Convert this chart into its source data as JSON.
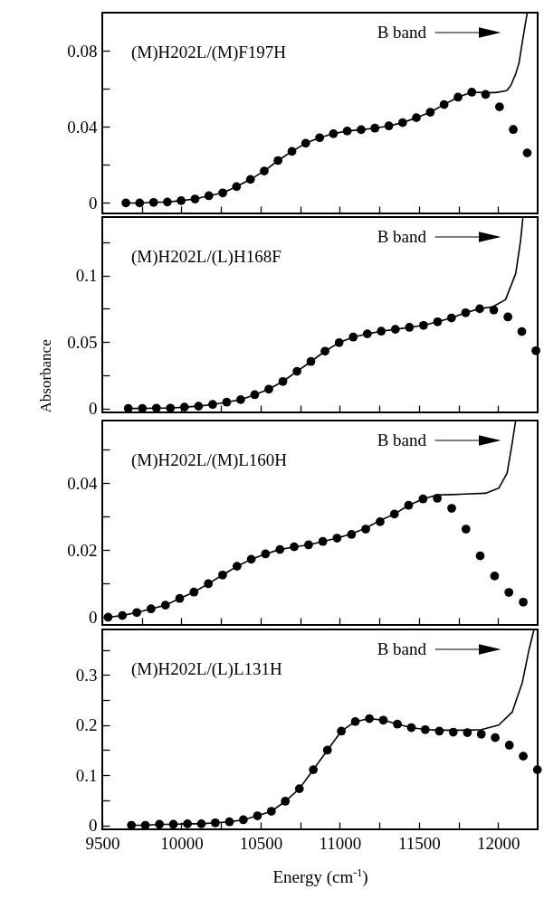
{
  "chart_data": [
    {
      "type": "scatter",
      "annotations": [
        "(M)H202L/(M)F197H",
        "B band"
      ],
      "xlim": [
        9500,
        12250
      ],
      "xticks": [
        9500,
        {
          "value": 9750,
          "label": null
        },
        10000,
        {
          "value": 10250,
          "label": null
        },
        10500,
        {
          "value": 10750,
          "label": null
        },
        11000,
        {
          "value": 11250,
          "label": null
        },
        11500,
        {
          "value": 11750,
          "label": null
        },
        12000
      ],
      "ylim": [
        -0.0055,
        0.1
      ],
      "yticks": [
        0,
        {
          "value": 0.02,
          "label": null
        },
        0.04,
        {
          "value": 0.06,
          "label": null
        },
        0.08
      ],
      "tick_labels": "y",
      "series": [
        {
          "type": "scatter",
          "marker": "circle",
          "color": "#000000",
          "x": [
            9649,
            9736,
            9824,
            9911,
            9998,
            10086,
            10173,
            10261,
            10348,
            10436,
            10523,
            10610,
            10698,
            10785,
            10873,
            10960,
            11047,
            11135,
            11222,
            11310,
            11397,
            11484,
            11572,
            11659,
            11747,
            11834,
            11921,
            12009,
            12096,
            12184
          ],
          "values": [
            0,
            0,
            0.0003,
            0.0005,
            0.0012,
            0.0021,
            0.0038,
            0.0053,
            0.0086,
            0.0124,
            0.0168,
            0.0223,
            0.0271,
            0.0314,
            0.0343,
            0.0364,
            0.0378,
            0.0385,
            0.0393,
            0.0405,
            0.0422,
            0.0448,
            0.0477,
            0.0517,
            0.0556,
            0.0582,
            0.057,
            0.0505,
            0.0386,
            0.0263
          ]
        },
        {
          "type": "line",
          "color": "#000000",
          "x": [
            9649,
            9736,
            9824,
            9911,
            9998,
            10086,
            10173,
            10261,
            10348,
            10436,
            10523,
            10610,
            10698,
            10785,
            10873,
            10960,
            11047,
            11135,
            11222,
            11310,
            11397,
            11484,
            11572,
            11659,
            11747,
            11834,
            11921,
            11983,
            12054,
            12079,
            12110,
            12132,
            12150,
            12170,
            12184
          ],
          "values": [
            0,
            0,
            0.0003,
            0.0005,
            0.0012,
            0.0021,
            0.0038,
            0.0053,
            0.0086,
            0.0124,
            0.0168,
            0.0223,
            0.0271,
            0.0314,
            0.0343,
            0.0364,
            0.0378,
            0.0385,
            0.0393,
            0.0405,
            0.0422,
            0.0448,
            0.0477,
            0.0517,
            0.0556,
            0.0582,
            0.058,
            0.058,
            0.059,
            0.0615,
            0.0675,
            0.0735,
            0.083,
            0.093,
            0.0998
          ]
        }
      ]
    },
    {
      "type": "scatter",
      "ylabel": "Absorbance",
      "annotations": [
        "(M)H202L/(L)H168F",
        "B band"
      ],
      "xlim": [
        9500,
        12250
      ],
      "xticks": [
        9500,
        {
          "value": 9750,
          "label": null
        },
        10000,
        {
          "value": 10250,
          "label": null
        },
        10500,
        {
          "value": 10750,
          "label": null
        },
        11000,
        {
          "value": 11250,
          "label": null
        },
        11500,
        {
          "value": 11750,
          "label": null
        },
        12000
      ],
      "ylim": [
        -0.003,
        0.144
      ],
      "yticks": [
        0,
        {
          "value": 0.025,
          "label": null
        },
        0.05,
        {
          "value": 0.075,
          "label": null
        },
        0.1,
        {
          "value": 0.125,
          "label": null
        }
      ],
      "tick_labels": "y",
      "series": [
        {
          "type": "scatter",
          "marker": "circle",
          "color": "#000000",
          "x": [
            9664,
            9753,
            9842,
            9930,
            10019,
            10108,
            10197,
            10286,
            10374,
            10463,
            10552,
            10641,
            10730,
            10818,
            10907,
            10996,
            11085,
            11174,
            11262,
            11351,
            11440,
            11529,
            11618,
            11706,
            11795,
            11884,
            11973,
            12062,
            12150,
            12239
          ],
          "values": [
            0,
            0,
            0.0002,
            0.0002,
            0.001,
            0.0017,
            0.003,
            0.0047,
            0.0066,
            0.0103,
            0.0145,
            0.0203,
            0.0279,
            0.0353,
            0.0431,
            0.0495,
            0.0537,
            0.0561,
            0.0581,
            0.0595,
            0.061,
            0.0625,
            0.0652,
            0.0681,
            0.072,
            0.075,
            0.074,
            0.0688,
            0.0578,
            0.0434
          ]
        },
        {
          "type": "line",
          "color": "#000000",
          "x": [
            9664,
            9753,
            9842,
            9930,
            10019,
            10108,
            10197,
            10286,
            10374,
            10463,
            10552,
            10641,
            10730,
            10818,
            10907,
            10996,
            11085,
            11174,
            11262,
            11351,
            11440,
            11529,
            11618,
            11706,
            11795,
            11884,
            11966,
            12047,
            12111,
            12142,
            12157
          ],
          "values": [
            0,
            0,
            0.0002,
            0.0002,
            0.001,
            0.0017,
            0.003,
            0.0047,
            0.0066,
            0.0103,
            0.0145,
            0.0203,
            0.0279,
            0.0353,
            0.0431,
            0.0495,
            0.0537,
            0.0561,
            0.0581,
            0.0595,
            0.061,
            0.0625,
            0.0652,
            0.0681,
            0.072,
            0.075,
            0.0765,
            0.0818,
            0.1014,
            0.126,
            0.144
          ]
        }
      ]
    },
    {
      "type": "scatter",
      "annotations": [
        "(M)H202L/(M)L160H",
        "B band"
      ],
      "xlim": [
        9500,
        12250
      ],
      "xticks": [
        9500,
        {
          "value": 9750,
          "label": null
        },
        10000,
        {
          "value": 10250,
          "label": null
        },
        10500,
        {
          "value": 10750,
          "label": null
        },
        11000,
        {
          "value": 11250,
          "label": null
        },
        11500,
        {
          "value": 11750,
          "label": null
        },
        12000
      ],
      "ylim": [
        -0.0023,
        0.0587
      ],
      "yticks": [
        0,
        {
          "value": 0.01,
          "label": null
        },
        0.02,
        {
          "value": 0.03,
          "label": null
        },
        0.04,
        {
          "value": 0.05,
          "label": null
        }
      ],
      "tick_labels": "y",
      "series": [
        {
          "type": "scatter",
          "marker": "circle",
          "color": "#000000",
          "x": [
            9537,
            9627,
            9718,
            9808,
            9899,
            9989,
            10079,
            10170,
            10260,
            10351,
            10441,
            10531,
            10622,
            10712,
            10803,
            10893,
            10983,
            11074,
            11164,
            11255,
            11345,
            11435,
            11526,
            11616,
            11707,
            11797,
            11887,
            11978,
            12068,
            12159
          ],
          "values": [
            0,
            0.0005,
            0.0014,
            0.0025,
            0.0036,
            0.0056,
            0.0075,
            0.01,
            0.0126,
            0.0152,
            0.0173,
            0.0189,
            0.0202,
            0.021,
            0.0216,
            0.0226,
            0.0236,
            0.0247,
            0.0263,
            0.0285,
            0.0308,
            0.0334,
            0.0353,
            0.0355,
            0.0325,
            0.0263,
            0.0183,
            0.0123,
            0.0074,
            0.0045
          ]
        },
        {
          "type": "line",
          "color": "#000000",
          "x": [
            9537,
            9627,
            9718,
            9808,
            9899,
            9989,
            10079,
            10170,
            10260,
            10351,
            10441,
            10531,
            10622,
            10712,
            10803,
            10893,
            10983,
            11074,
            11164,
            11255,
            11345,
            11435,
            11526,
            11616,
            11708,
            11920,
            12004,
            12057,
            12089,
            12111
          ],
          "values": [
            0,
            0.0005,
            0.0014,
            0.0025,
            0.0036,
            0.0056,
            0.0075,
            0.01,
            0.0126,
            0.0152,
            0.0173,
            0.0189,
            0.0202,
            0.021,
            0.0216,
            0.0226,
            0.0236,
            0.0249,
            0.0266,
            0.0289,
            0.0308,
            0.0334,
            0.0353,
            0.0365,
            0.0366,
            0.037,
            0.0385,
            0.043,
            0.0519,
            0.0587
          ]
        }
      ]
    },
    {
      "type": "scatter",
      "xlabel": "Energy (cm$^{-1}$)",
      "annotations": [
        "(M)H202L/(L)L131H",
        "B band"
      ],
      "xlim": [
        9500,
        12250
      ],
      "xticks": [
        9500,
        {
          "value": 9750,
          "label": null
        },
        10000,
        {
          "value": 10250,
          "label": null
        },
        10500,
        {
          "value": 10750,
          "label": null
        },
        11000,
        {
          "value": 11250,
          "label": null
        },
        11500,
        {
          "value": 11750,
          "label": null
        },
        12000
      ],
      "ylim": [
        -0.008,
        0.391
      ],
      "yticks": [
        0,
        {
          "value": 0.05,
          "label": null
        },
        0.1,
        {
          "value": 0.15,
          "label": null
        },
        0.2,
        {
          "value": 0.25,
          "label": null
        },
        0.3,
        {
          "value": 0.35,
          "label": null
        }
      ],
      "series": [
        {
          "type": "scatter",
          "marker": "circle",
          "color": "#000000",
          "x": [
            9684,
            9772,
            9861,
            9949,
            10038,
            10126,
            10214,
            10303,
            10391,
            10480,
            10568,
            10656,
            10745,
            10833,
            10922,
            11010,
            11098,
            11187,
            11275,
            11364,
            11452,
            11540,
            11629,
            11717,
            11806,
            11894,
            11982,
            12071,
            12159,
            12248
          ],
          "values": [
            0,
            0,
            0.002,
            0.002,
            0.003,
            0.003,
            0.005,
            0.007,
            0.011,
            0.019,
            0.028,
            0.048,
            0.073,
            0.111,
            0.15,
            0.188,
            0.207,
            0.213,
            0.21,
            0.202,
            0.195,
            0.191,
            0.188,
            0.186,
            0.185,
            0.182,
            0.175,
            0.16,
            0.138,
            0.111
          ]
        },
        {
          "type": "line",
          "color": "#000000",
          "x": [
            9684,
            9772,
            9861,
            9949,
            10038,
            10126,
            10214,
            10303,
            10391,
            10480,
            10568,
            10656,
            10745,
            10833,
            10922,
            11010,
            11098,
            11187,
            11275,
            11364,
            11452,
            11540,
            11629,
            11717,
            11806,
            11894,
            12004,
            12089,
            12153,
            12195,
            12227
          ],
          "values": [
            0,
            0,
            0.002,
            0.002,
            0.003,
            0.003,
            0.005,
            0.007,
            0.011,
            0.019,
            0.028,
            0.048,
            0.073,
            0.111,
            0.15,
            0.188,
            0.207,
            0.213,
            0.21,
            0.202,
            0.195,
            0.191,
            0.19,
            0.19,
            0.19,
            0.191,
            0.2,
            0.226,
            0.285,
            0.35,
            0.391
          ]
        }
      ]
    }
  ]
}
